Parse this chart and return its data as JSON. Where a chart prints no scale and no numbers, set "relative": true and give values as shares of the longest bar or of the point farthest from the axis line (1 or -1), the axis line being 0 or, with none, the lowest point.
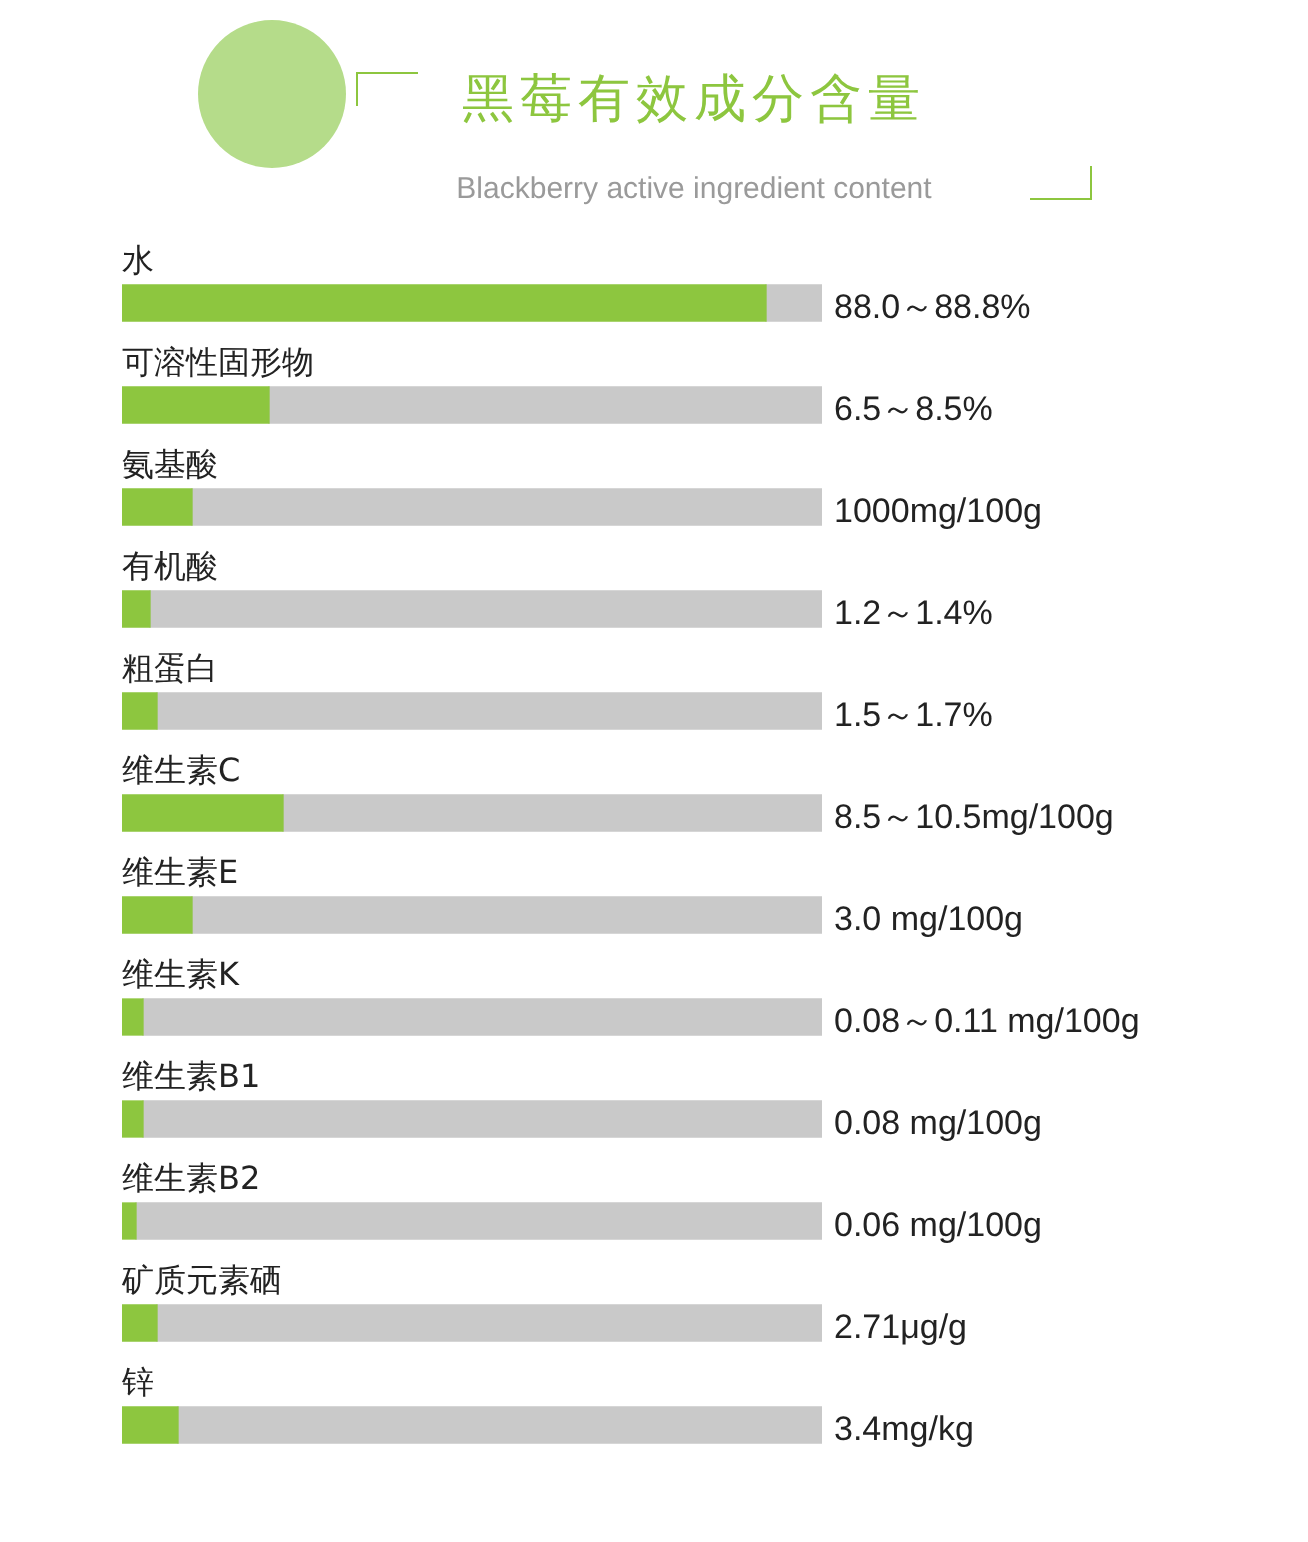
{
  "chart_data": {
    "type": "bar",
    "title": "黑莓有效成分含量",
    "subtitle": "Blackberry active ingredient content",
    "orientation": "horizontal",
    "stacked": true,
    "relative": true,
    "categories": [
      "水",
      "可溶性固形物",
      "氨基酸",
      "有机酸",
      "粗蛋白",
      "维生素C",
      "维生素E",
      "维生素K",
      "维生素B1",
      "维生素B2",
      "矿质元素硒",
      "锌"
    ],
    "series": [
      {
        "color": "#8dc63f",
        "values": [
          0.92,
          0.21,
          0.1,
          0.04,
          0.05,
          0.23,
          0.1,
          0.03,
          0.03,
          0.02,
          0.05,
          0.08
        ]
      },
      {
        "color": "#c9c9c9",
        "values": [
          0.08,
          0.79,
          0.9,
          0.96,
          0.95,
          0.77,
          0.9,
          0.97,
          0.97,
          0.98,
          0.95,
          0.92
        ]
      }
    ],
    "annotations": [
      "88.0～88.8%",
      "6.5～8.5%",
      "1000mg/100g",
      "1.2～1.4%",
      "1.5～1.7%",
      "8.5～10.5mg/100g",
      "3.0 mg/100g",
      "0.08～0.11 mg/100g",
      "0.08 mg/100g",
      "0.06 mg/100g",
      "2.71μg/g",
      "3.4mg/kg"
    ]
  }
}
